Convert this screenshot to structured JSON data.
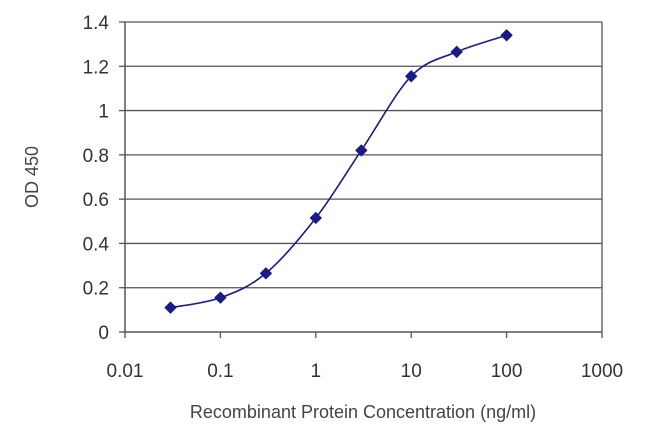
{
  "chart_data": {
    "type": "line",
    "xlabel": "Recombinant Protein Concentration (ng/ml)",
    "ylabel": "OD 450",
    "x_scale": "log",
    "xlim": [
      0.01,
      1000
    ],
    "ylim": [
      0,
      1.4
    ],
    "x_ticks": [
      "0.01",
      "0.1",
      "1",
      "10",
      "100",
      "1000"
    ],
    "y_ticks": [
      "0",
      "0.2",
      "0.4",
      "0.6",
      "0.8",
      "1",
      "1.2",
      "1.4"
    ],
    "grid": "horizontal",
    "series": [
      {
        "x": [
          0.03,
          0.1,
          0.3,
          1,
          3,
          10,
          30,
          100
        ],
        "y": [
          0.11,
          0.155,
          0.265,
          0.515,
          0.82,
          1.155,
          1.265,
          1.34
        ]
      }
    ],
    "colors": {
      "series": "#1a1a8a",
      "grid": "#555555",
      "axis": "#555555"
    }
  }
}
